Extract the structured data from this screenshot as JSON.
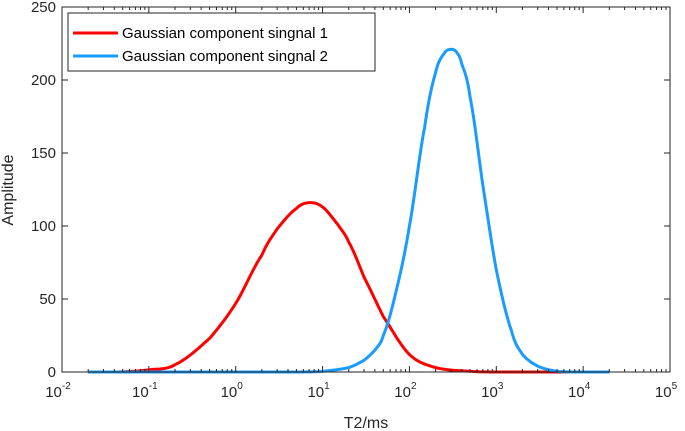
{
  "chart_data": {
    "type": "line",
    "x_scale": "log",
    "xlabel": "T2/ms",
    "ylabel": "Amplitude",
    "xlim": [
      0.01,
      100000
    ],
    "ylim": [
      0,
      250
    ],
    "x_tick_labels": [
      {
        "base": "10",
        "exp": "-2"
      },
      {
        "base": "10",
        "exp": "-1"
      },
      {
        "base": "10",
        "exp": "0"
      },
      {
        "base": "10",
        "exp": "1"
      },
      {
        "base": "10",
        "exp": "2"
      },
      {
        "base": "10",
        "exp": "3"
      },
      {
        "base": "10",
        "exp": "4"
      },
      {
        "base": "10",
        "exp": "5"
      }
    ],
    "y_tick_labels": [
      "0",
      "50",
      "100",
      "150",
      "200",
      "250"
    ],
    "grid": false,
    "legend_position": "top-left",
    "series": [
      {
        "name": "Gaussian component singnal 1",
        "color": "#ff0000",
        "x": [
          0.02,
          0.05,
          0.1,
          0.2,
          0.5,
          1,
          2,
          3,
          5,
          7,
          10,
          15,
          20,
          30,
          50,
          100,
          200,
          500,
          1000,
          2000,
          5000,
          10000,
          20000
        ],
        "y": [
          0,
          0.1,
          1.5,
          5,
          23,
          47,
          80,
          98,
          112,
          116,
          113,
          101,
          89,
          65,
          38,
          12,
          3,
          0.5,
          0,
          0,
          0,
          0,
          0
        ]
      },
      {
        "name": "Gaussian component singnal 2",
        "color": "#1a9cff",
        "x": [
          0.02,
          1,
          5,
          10,
          20,
          30,
          40,
          50,
          70,
          100,
          150,
          200,
          250,
          300,
          350,
          400,
          500,
          700,
          1000,
          1500,
          2000,
          3000,
          5000,
          10000,
          20000
        ],
        "y": [
          0,
          0,
          0,
          0.5,
          3,
          8,
          15,
          25,
          55,
          100,
          168,
          205,
          218,
          221,
          219,
          211,
          188,
          128,
          70,
          28,
          12,
          4,
          0.5,
          0,
          0
        ]
      }
    ]
  }
}
